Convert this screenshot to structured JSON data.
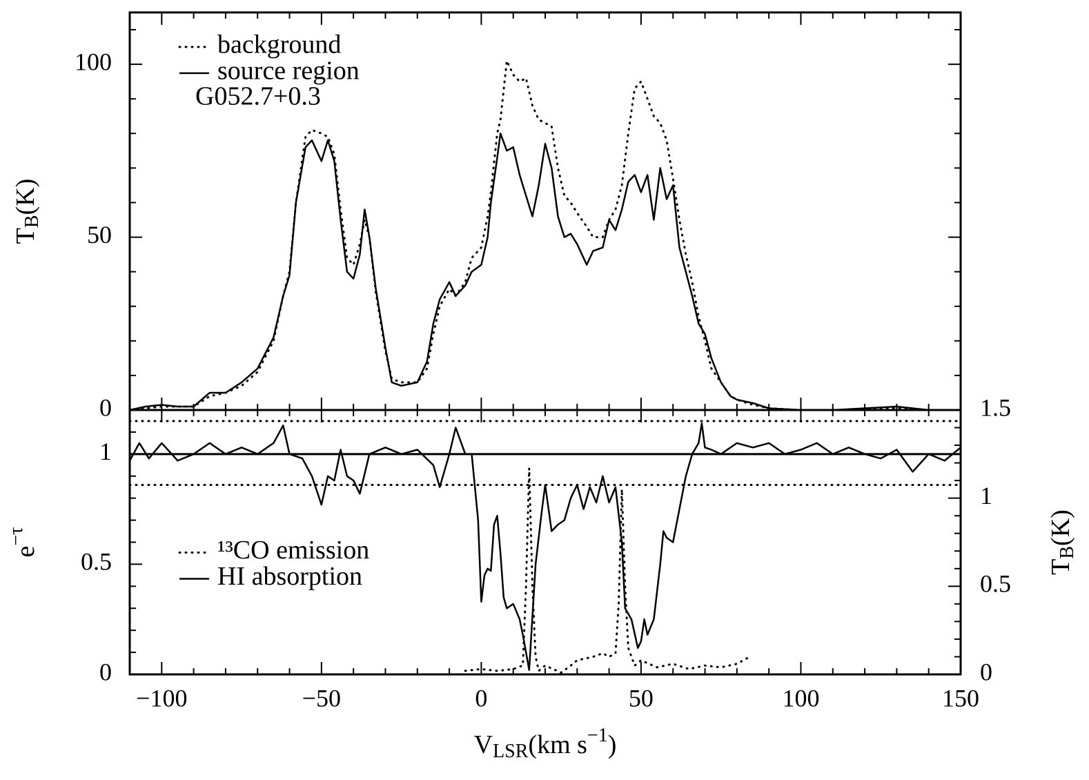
{
  "chart_data": [
    {
      "type": "line",
      "xlim": [
        -110,
        150
      ],
      "ylim": [
        0,
        115
      ],
      "xticks": [
        -100,
        -50,
        0,
        50,
        100,
        150
      ],
      "xtick_labels": false,
      "xminorticks": [
        -90,
        -80,
        -70,
        -60,
        -40,
        -30,
        -20,
        -10,
        10,
        20,
        30,
        40,
        60,
        70,
        80,
        90,
        110,
        120,
        130,
        140
      ],
      "yticks": [
        0,
        50,
        100
      ],
      "yminorticks": [
        10,
        20,
        30,
        40,
        60,
        70,
        80,
        90,
        110
      ],
      "ylabel": [
        {
          "text": "T"
        },
        {
          "text": "B",
          "shift": "sub"
        },
        {
          "text": "(K)"
        }
      ],
      "annotation": "G052.7+0.3",
      "legend": "upper left",
      "x": [
        -110,
        -105,
        -100,
        -95,
        -90,
        -85,
        -80,
        -75,
        -70,
        -65,
        -62,
        -60,
        -58,
        -55,
        -53,
        -50,
        -48,
        -46,
        -44,
        -42,
        -40,
        -38,
        -36.5,
        -35,
        -33,
        -30,
        -28,
        -25,
        -20,
        -17,
        -15,
        -13,
        -10,
        -8,
        -5,
        -3,
        0,
        2,
        3,
        5,
        6,
        8,
        10,
        12,
        14,
        16,
        18,
        20,
        22,
        24,
        26,
        28,
        30,
        33,
        35,
        38,
        40,
        42,
        44,
        46,
        48,
        50,
        52,
        54,
        56,
        58,
        60,
        62,
        64,
        66,
        68,
        70,
        72,
        75,
        78,
        80,
        85,
        90,
        100,
        110,
        120,
        130,
        140,
        150
      ],
      "series": [
        {
          "name": "background",
          "style": "dotted",
          "color": "#000000",
          "values": [
            0,
            0.5,
            1,
            1,
            1,
            4,
            5,
            7,
            11,
            20,
            33,
            40,
            60,
            79,
            81,
            80,
            79,
            74,
            58,
            44,
            42,
            48,
            55,
            50,
            34,
            17,
            9,
            8,
            8,
            12,
            22,
            30,
            35,
            33,
            37,
            44,
            47,
            56,
            63,
            80,
            84,
            101,
            97,
            95,
            96,
            88,
            84,
            83,
            82,
            70,
            62,
            60,
            57,
            53,
            50,
            50,
            55,
            58,
            65,
            80,
            93,
            95,
            90,
            85,
            83,
            78,
            67,
            55,
            45,
            37,
            27,
            20,
            12,
            8,
            4,
            3,
            1.5,
            0.5,
            0,
            0,
            0,
            0.5,
            0,
            0
          ]
        },
        {
          "name": "source region",
          "style": "solid",
          "color": "#000000",
          "values": [
            0,
            1,
            1.5,
            1,
            1,
            5,
            5,
            8,
            12,
            21,
            33,
            39,
            60,
            76,
            78,
            72,
            78,
            72,
            55,
            40,
            38,
            45,
            58,
            50,
            35,
            18,
            8,
            7,
            8,
            14,
            25,
            32,
            37,
            33,
            36,
            40,
            42,
            50,
            60,
            73,
            80,
            75,
            76,
            68,
            62,
            56,
            65,
            77,
            70,
            56,
            50,
            51,
            48,
            42,
            46,
            47,
            55,
            52,
            58,
            66,
            68,
            63,
            68,
            55,
            70,
            61,
            65,
            47,
            40,
            33,
            25,
            22,
            15,
            8,
            4,
            3,
            2,
            0.5,
            0,
            0,
            0.5,
            1,
            0,
            0
          ]
        }
      ]
    },
    {
      "type": "line",
      "xlim": [
        -110,
        150
      ],
      "ylim": [
        0,
        1.2
      ],
      "y2lim": [
        0,
        1.5
      ],
      "xticks": [
        {
          "value": -100,
          "label": "−100"
        },
        {
          "value": -50,
          "label": "−50"
        },
        0,
        50,
        100,
        150
      ],
      "xtick_labels": true,
      "xminorticks": [
        -90,
        -80,
        -70,
        -60,
        -40,
        -30,
        -20,
        -10,
        10,
        20,
        30,
        40,
        60,
        70,
        80,
        90,
        110,
        120,
        130,
        140
      ],
      "yticks": [
        0,
        0.5,
        1
      ],
      "yminorticks": [
        0.1,
        0.2,
        0.3,
        0.4,
        0.6,
        0.7,
        0.8,
        0.9,
        1.1
      ],
      "y2ticks": [
        0,
        0.5,
        1,
        1.5
      ],
      "y2minorticks": [
        0.1,
        0.2,
        0.3,
        0.4,
        0.6,
        0.7,
        0.8,
        0.9,
        1.1,
        1.2,
        1.3,
        1.4
      ],
      "xlabel": [
        {
          "text": "V"
        },
        {
          "text": "LSR",
          "shift": "sub"
        },
        {
          "text": "(km s"
        },
        {
          "text": "−1",
          "shift": "sup"
        },
        {
          "text": ")"
        }
      ],
      "ylabel": [
        {
          "text": "e"
        },
        {
          "text": "−τ",
          "shift": "sup"
        }
      ],
      "y2label": [
        {
          "text": "T"
        },
        {
          "text": "B",
          "shift": "sub"
        },
        {
          "text": "(K)"
        }
      ],
      "legend": "center left",
      "hlines": [
        {
          "value": 1,
          "style": "solid"
        },
        {
          "value": 1.15,
          "style": "dotted"
        },
        {
          "value": 0.86,
          "style": "dotted"
        }
      ],
      "series": [
        {
          "name": "¹³CO emission",
          "style": "dotted",
          "color": "#000000",
          "axis": "y2",
          "x": [
            -5,
            0,
            5,
            10,
            13,
            14,
            15,
            16,
            17,
            18,
            20,
            25,
            28,
            30,
            35,
            38,
            40,
            42,
            43,
            44,
            45,
            46,
            48,
            50,
            55,
            60,
            65,
            70,
            75,
            80,
            84
          ],
          "values": [
            0.02,
            0.03,
            0.02,
            0.03,
            0.05,
            0.5,
            1.17,
            0.5,
            0.1,
            0.02,
            0.05,
            0.01,
            0.05,
            0.08,
            0.1,
            0.12,
            0.1,
            0.12,
            0.4,
            1.05,
            0.5,
            0.15,
            0.05,
            0.08,
            0.04,
            0.06,
            0.03,
            0.05,
            0.04,
            0.06,
            0.1
          ]
        },
        {
          "name": "HI absorption",
          "style": "solid",
          "color": "#000000",
          "x": [
            -110,
            -107,
            -104,
            -100,
            -95,
            -90,
            -85,
            -80,
            -75,
            -70,
            -65,
            -62,
            -60,
            -56,
            -53,
            -50,
            -48,
            -46,
            -44,
            -42,
            -40,
            -38,
            -35,
            -30,
            -25,
            -20,
            -15,
            -13,
            -10,
            -8,
            -5,
            -3,
            -1,
            0,
            1,
            2,
            3,
            4,
            5,
            6,
            7,
            8,
            10,
            12,
            13,
            15,
            17,
            19,
            20,
            22,
            24,
            26,
            28,
            30,
            32,
            34,
            36,
            38,
            40,
            42,
            44,
            45,
            47,
            49,
            50,
            51,
            52,
            54,
            56,
            57,
            58,
            60,
            62,
            64,
            66,
            68,
            69,
            70,
            72,
            75,
            80,
            85,
            90,
            95,
            100,
            105,
            110,
            115,
            120,
            125,
            130,
            135,
            140,
            145,
            150
          ],
          "values": [
            0.97,
            1.05,
            0.98,
            1.05,
            0.97,
            1.0,
            1.05,
            1.0,
            1.03,
            1.0,
            1.05,
            1.13,
            1.0,
            0.98,
            0.9,
            0.77,
            0.9,
            0.88,
            1.02,
            0.9,
            0.88,
            0.82,
            1.0,
            1.03,
            1.0,
            1.02,
            0.95,
            0.85,
            1.0,
            1.12,
            1.0,
            1.0,
            0.7,
            0.33,
            0.45,
            0.48,
            0.47,
            0.68,
            0.72,
            0.55,
            0.35,
            0.3,
            0.32,
            0.25,
            0.18,
            0.02,
            0.5,
            0.75,
            0.86,
            0.65,
            0.68,
            0.7,
            0.8,
            0.86,
            0.75,
            0.85,
            0.78,
            0.9,
            0.78,
            0.85,
            0.6,
            0.3,
            0.25,
            0.12,
            0.15,
            0.25,
            0.18,
            0.25,
            0.5,
            0.65,
            0.62,
            0.6,
            0.75,
            0.9,
            1.0,
            1.05,
            1.14,
            1.03,
            1.02,
            1.0,
            1.05,
            1.03,
            1.05,
            1.0,
            1.02,
            1.05,
            1.0,
            1.03,
            1.0,
            0.98,
            1.02,
            0.92,
            1.0,
            0.97,
            1.03
          ]
        }
      ]
    }
  ]
}
